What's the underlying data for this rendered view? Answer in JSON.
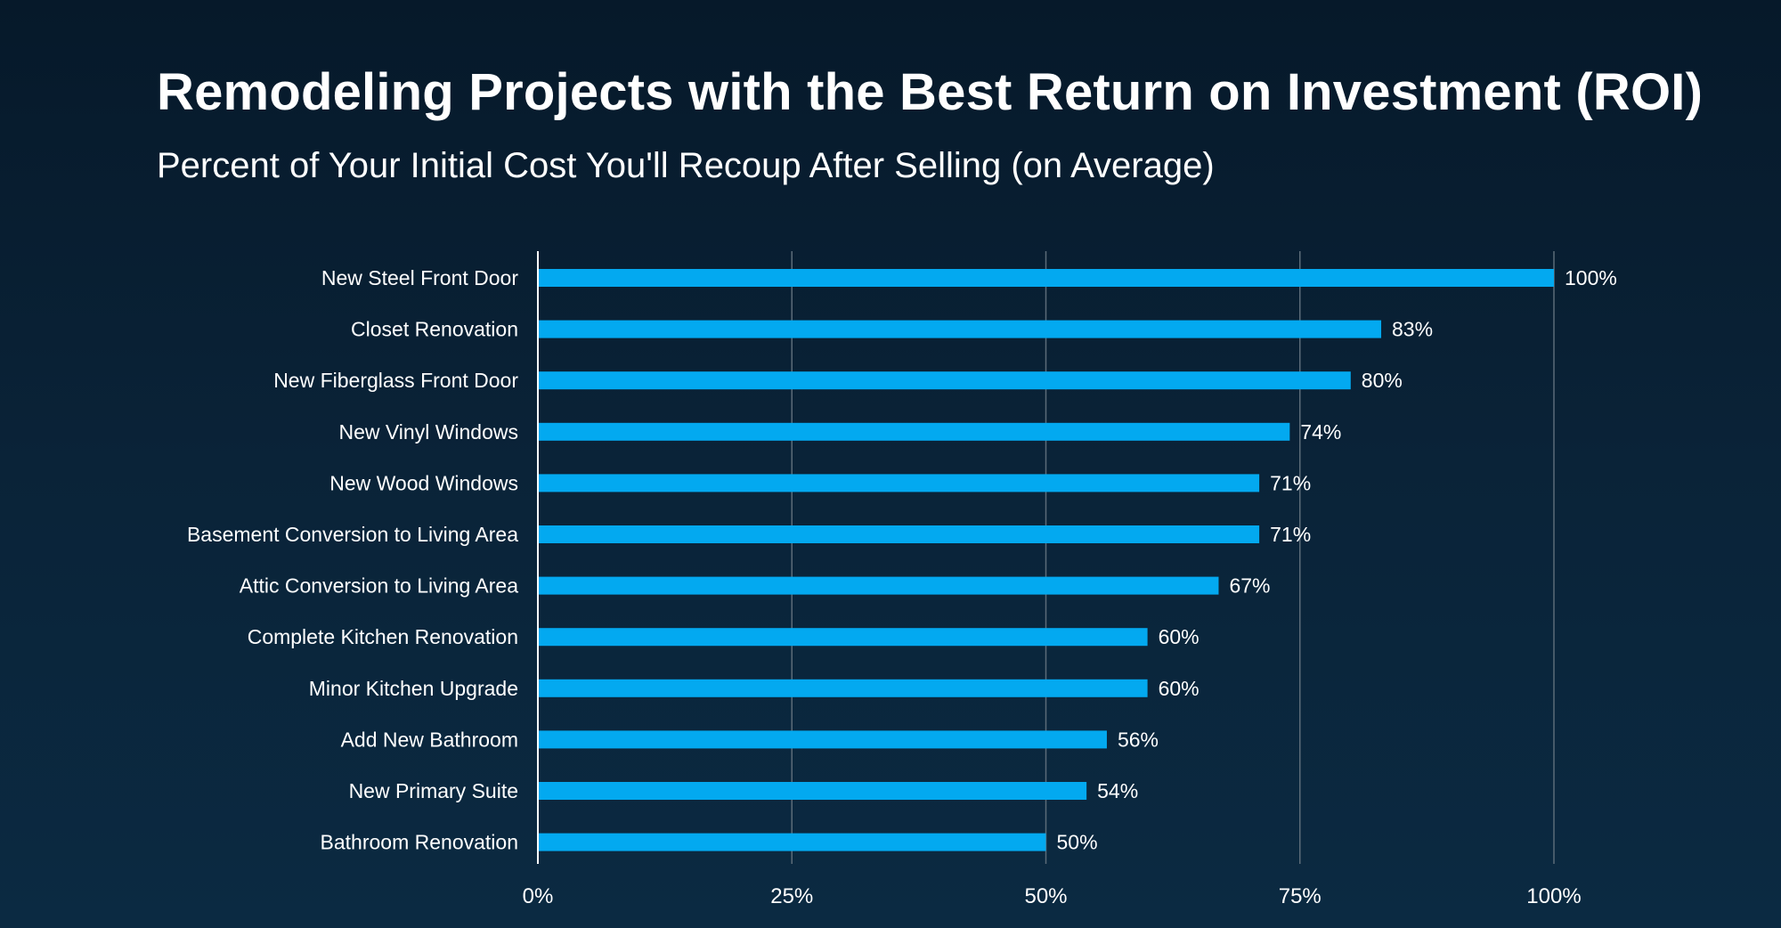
{
  "title": "Remodeling Projects with the Best Return on Investment (ROI)",
  "subtitle": "Percent of Your Initial Cost You'll Recoup After Selling (on Average)",
  "colors": {
    "bar": "#03a9f0",
    "grid": "#5b6b78",
    "axis": "#ffffff",
    "text": "#ffffff"
  },
  "chart_data": {
    "type": "bar",
    "orientation": "horizontal",
    "title": "Remodeling Projects with the Best Return on Investment (ROI)",
    "subtitle": "Percent of Your Initial Cost You'll Recoup After Selling (on Average)",
    "xlabel": "",
    "ylabel": "",
    "xlim": [
      0,
      100
    ],
    "x_ticks": [
      0,
      25,
      50,
      75,
      100
    ],
    "x_tick_labels": [
      "0%",
      "25%",
      "50%",
      "75%",
      "100%"
    ],
    "grid": "vertical",
    "legend": "none",
    "categories": [
      "New Steel Front Door",
      "Closet Renovation",
      "New Fiberglass Front Door",
      "New Vinyl Windows",
      "New Wood Windows",
      "Basement Conversion to Living Area",
      "Attic Conversion to Living Area",
      "Complete Kitchen Renovation",
      "Minor Kitchen Upgrade",
      "Add New Bathroom",
      "New Primary Suite",
      "Bathroom Renovation"
    ],
    "values": [
      100,
      83,
      80,
      74,
      71,
      71,
      67,
      60,
      60,
      56,
      54,
      50
    ],
    "value_labels": [
      "100%",
      "83%",
      "80%",
      "74%",
      "71%",
      "71%",
      "67%",
      "60%",
      "60%",
      "56%",
      "54%",
      "50%"
    ]
  }
}
